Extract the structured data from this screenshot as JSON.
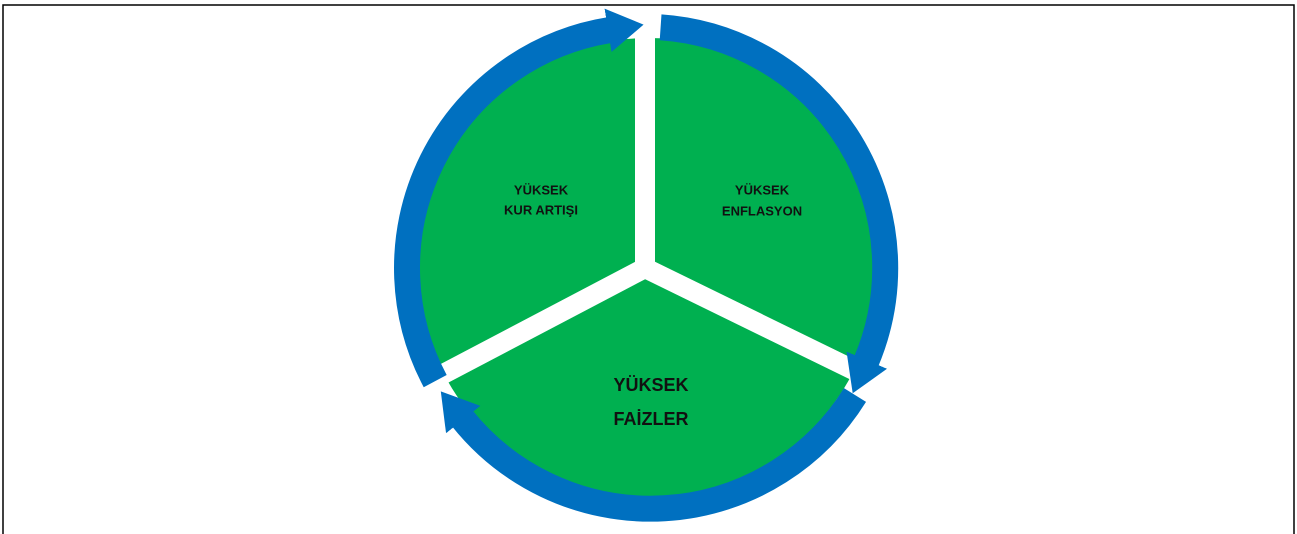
{
  "nodes": [
    {
      "lines": [
        "YÜKSEK",
        "KUR ARTIŞI"
      ]
    },
    {
      "lines": [
        "YÜKSEK",
        "ENFLASYON"
      ]
    },
    {
      "lines": [
        "YÜKSEK",
        "FAİZLER"
      ]
    }
  ]
}
